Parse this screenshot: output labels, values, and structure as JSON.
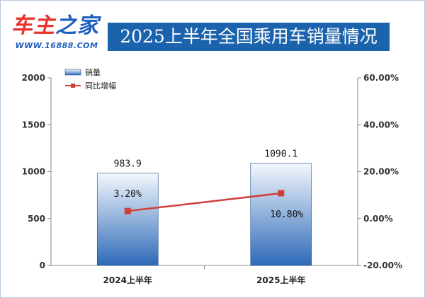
{
  "header": {
    "logo_part1": "车主",
    "logo_part2": "之家",
    "logo_url": "WWW.16888.COM",
    "title": "2025上半年全国乘用车销量情况"
  },
  "colors": {
    "banner": "#1b63ad",
    "bar_top": "#f4f8fd",
    "bar_bottom": "#2e6ab8",
    "line": "#d0413d",
    "logo_red": "#e8322c",
    "logo_blue": "#1f5fbf"
  },
  "chart_data": {
    "type": "bar",
    "categories": [
      "2024上半年",
      "2025上半年"
    ],
    "series": [
      {
        "name": "销量",
        "type": "bar",
        "axis": "left",
        "values": [
          983.9,
          1090.1
        ],
        "labels": [
          "983.9",
          "1090.1"
        ]
      },
      {
        "name": "同比增幅",
        "type": "line",
        "axis": "right",
        "values": [
          3.2,
          10.8
        ],
        "labels": [
          "3.20%",
          "10.80%"
        ]
      }
    ],
    "left_axis": {
      "min": 0,
      "max": 2000,
      "ticks": [
        "0",
        "500",
        "1000",
        "1500",
        "2000"
      ]
    },
    "right_axis": {
      "min": -20,
      "max": 60,
      "ticks": [
        "-20.00%",
        "0.00%",
        "20.00%",
        "40.00%",
        "60.00%"
      ]
    },
    "legend_position": "top-left",
    "grid": false
  }
}
